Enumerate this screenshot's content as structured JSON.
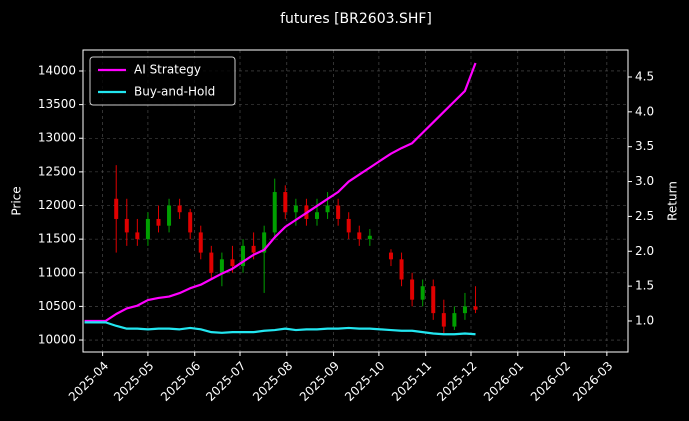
{
  "chart_data": {
    "type": "candlestick",
    "title": "futures [BR2603.SHF]",
    "ylabel": "Price",
    "y2label": "Return",
    "x": [
      "2025-03-20",
      "2025-03-27",
      "2025-04-03",
      "2025-04-10",
      "2025-04-17",
      "2025-04-24",
      "2025-05-01",
      "2025-05-08",
      "2025-05-15",
      "2025-05-22",
      "2025-05-29",
      "2025-06-05",
      "2025-06-12",
      "2025-06-19",
      "2025-06-26",
      "2025-07-03",
      "2025-07-10",
      "2025-07-17",
      "2025-07-24",
      "2025-07-31",
      "2025-08-07",
      "2025-08-14",
      "2025-08-21",
      "2025-08-28",
      "2025-09-04",
      "2025-09-11",
      "2025-09-18",
      "2025-09-25",
      "2025-10-02",
      "2025-10-09",
      "2025-10-16",
      "2025-10-23",
      "2025-10-30",
      "2025-11-06",
      "2025-11-13",
      "2025-11-20",
      "2025-11-27",
      "2025-12-04"
    ],
    "open": [
      null,
      null,
      null,
      12100,
      11800,
      11600,
      11500,
      11800,
      11700,
      12000,
      11900,
      11600,
      11300,
      11000,
      11200,
      11100,
      11400,
      11300,
      11600,
      12200,
      11900,
      12000,
      11800,
      11900,
      12000,
      11800,
      11600,
      11500,
      null,
      11300,
      11200,
      10900,
      10600,
      10800,
      10400,
      10200,
      10400,
      10500
    ],
    "high": [
      null,
      null,
      null,
      12600,
      12100,
      11800,
      11900,
      12000,
      12100,
      12100,
      11950,
      11700,
      11400,
      11300,
      11400,
      11500,
      11600,
      11700,
      12400,
      12300,
      12100,
      12100,
      12100,
      12200,
      12100,
      11900,
      11700,
      11650,
      null,
      11350,
      11300,
      11000,
      10900,
      10900,
      10600,
      10500,
      10700,
      10800
    ],
    "low": [
      null,
      null,
      null,
      11300,
      11400,
      11400,
      11400,
      11600,
      11600,
      11800,
      11500,
      11200,
      10900,
      10800,
      11000,
      11000,
      11200,
      10700,
      11500,
      11800,
      11700,
      11700,
      11700,
      11800,
      11700,
      11500,
      11400,
      11400,
      null,
      11100,
      10800,
      10500,
      10500,
      10300,
      10100,
      10150,
      10300,
      10400
    ],
    "close": [
      null,
      null,
      null,
      11800,
      11600,
      11500,
      11800,
      11700,
      12000,
      11900,
      11600,
      11300,
      11000,
      11200,
      11100,
      11400,
      11300,
      11600,
      12200,
      11900,
      12000,
      11800,
      11900,
      12000,
      11800,
      11600,
      11500,
      11550,
      null,
      11200,
      10900,
      10600,
      10800,
      10400,
      10200,
      10400,
      10500,
      10450
    ],
    "up_color": "#00a000",
    "down_color": "#e00000",
    "series": [
      {
        "name": "AI Strategy",
        "color": "#ff00ff",
        "axis": "y2",
        "values": [
          1.0,
          1.0,
          1.0,
          1.1,
          1.18,
          1.22,
          1.3,
          1.33,
          1.35,
          1.4,
          1.47,
          1.52,
          1.6,
          1.68,
          1.75,
          1.85,
          1.95,
          2.02,
          2.2,
          2.35,
          2.45,
          2.55,
          2.65,
          2.75,
          2.85,
          3.0,
          3.1,
          3.2,
          3.3,
          3.4,
          3.48,
          3.55,
          3.7,
          3.85,
          4.0,
          4.15,
          4.3,
          4.7
        ]
      },
      {
        "name": "Buy-and-Hold",
        "color": "#22e6f0",
        "axis": "y2",
        "values": [
          0.98,
          0.98,
          0.98,
          0.93,
          0.89,
          0.89,
          0.88,
          0.89,
          0.89,
          0.88,
          0.9,
          0.88,
          0.84,
          0.83,
          0.84,
          0.84,
          0.84,
          0.86,
          0.87,
          0.89,
          0.87,
          0.88,
          0.88,
          0.89,
          0.89,
          0.9,
          0.89,
          0.89,
          0.88,
          0.87,
          0.86,
          0.86,
          0.84,
          0.82,
          0.81,
          0.81,
          0.82,
          0.81
        ]
      }
    ],
    "xlim": [
      "2025-03-19",
      "2026-03-15"
    ],
    "xticks": [
      {
        "value": "2025-04-01",
        "label": "2025-04"
      },
      {
        "value": "2025-05-01",
        "label": "2025-05"
      },
      {
        "value": "2025-06-01",
        "label": "2025-06"
      },
      {
        "value": "2025-07-01",
        "label": "2025-07"
      },
      {
        "value": "2025-08-01",
        "label": "2025-08"
      },
      {
        "value": "2025-09-01",
        "label": "2025-09"
      },
      {
        "value": "2025-10-01",
        "label": "2025-10"
      },
      {
        "value": "2025-11-01",
        "label": "2025-11"
      },
      {
        "value": "2025-12-01",
        "label": "2025-12"
      },
      {
        "value": "2026-01-01",
        "label": "2026-01"
      },
      {
        "value": "2026-02-01",
        "label": "2026-02"
      },
      {
        "value": "2026-03-01",
        "label": "2026-03"
      }
    ],
    "ylim": [
      9822,
      14312
    ],
    "yticks": [
      10000,
      10500,
      11000,
      11500,
      12000,
      12500,
      13000,
      13500,
      14000
    ],
    "y2lim": [
      0.555,
      4.887
    ],
    "y2ticks": [
      {
        "value": 1,
        "label": "1.0"
      },
      {
        "value": 1.5,
        "label": "1.5"
      },
      {
        "value": 2,
        "label": "2.0"
      },
      {
        "value": 2.5,
        "label": "2.5"
      },
      {
        "value": 3,
        "label": "3.0"
      },
      {
        "value": 3.5,
        "label": "3.5"
      },
      {
        "value": 4,
        "label": "4.0"
      },
      {
        "value": 4.5,
        "label": "4.5"
      }
    ],
    "grid": true,
    "legend": "upper left"
  }
}
